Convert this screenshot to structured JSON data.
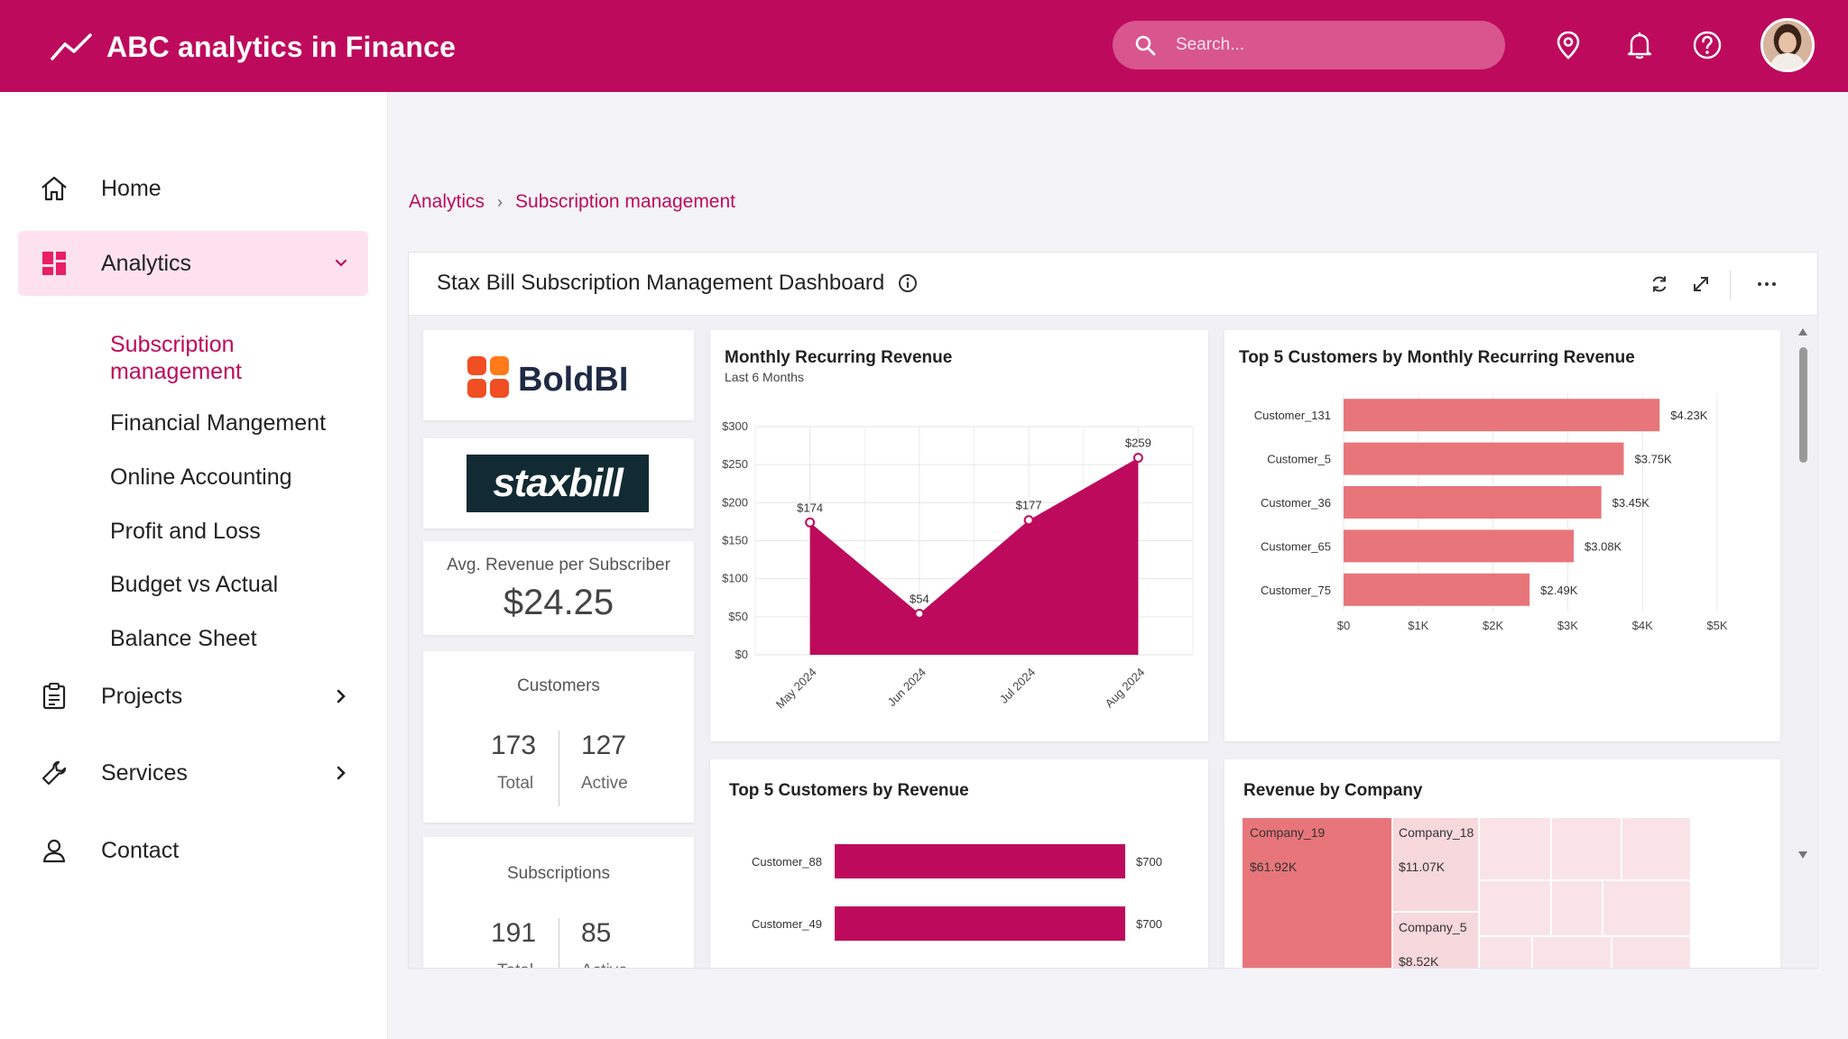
{
  "header": {
    "app_title": "ABC analytics in Finance",
    "search_placeholder": "Search...",
    "icons": [
      "trend-line-icon",
      "search-icon",
      "location-pin-icon",
      "bell-icon",
      "help-icon"
    ],
    "brand_color": "#be0a5c"
  },
  "sidebar": {
    "items": [
      {
        "label": "Home",
        "icon": "home-icon"
      },
      {
        "label": "Analytics",
        "icon": "dashboard-icon",
        "expanded": true
      },
      {
        "label": "Projects",
        "icon": "clipboard-icon"
      },
      {
        "label": "Services",
        "icon": "wrench-icon"
      },
      {
        "label": "Contact",
        "icon": "person-icon"
      }
    ],
    "analytics_children": [
      "Subscription management",
      "Financial Mangement",
      "Online Accounting",
      "Profit and Loss",
      "Budget vs Actual",
      "Balance Sheet"
    ]
  },
  "breadcrumb": {
    "root": "Analytics",
    "current": "Subscription management"
  },
  "dashboard": {
    "title": "Stax Bill Subscription Management Dashboard",
    "logos": {
      "boldbi": "BoldBI",
      "staxbill": "staxbill"
    },
    "avg_revenue": {
      "label": "Avg. Revenue per Subscriber",
      "value": "$24.25"
    },
    "customers": {
      "label": "Customers",
      "total": "173",
      "total_label": "Total",
      "active": "127",
      "active_label": "Active"
    },
    "subscriptions": {
      "label": "Subscriptions",
      "total": "191",
      "total_label": "Total",
      "active": "85",
      "active_label": "Active"
    },
    "mrr": {
      "title": "Monthly Recurring Revenue",
      "subtitle": "Last 6  Months"
    },
    "top5_mrr": {
      "title": "Top 5 Customers by Monthly Recurring Revenue"
    },
    "top5_rev": {
      "title": "Top 5 Customers by Revenue"
    },
    "rev_company": {
      "title": "Revenue by Company",
      "tiles": [
        {
          "name": "Company_19",
          "value": "$61.92K"
        },
        {
          "name": "Company_18",
          "value": "$11.07K"
        },
        {
          "name": "Company_5",
          "value": "$8.52K"
        }
      ]
    }
  },
  "chart_data": [
    {
      "type": "area",
      "title": "Monthly Recurring Revenue",
      "subtitle": "Last 6  Months",
      "categories": [
        "May 2024",
        "Jun 2024",
        "Jul 2024",
        "Aug 2024"
      ],
      "values": [
        174,
        54,
        177,
        259
      ],
      "data_labels": [
        "$174",
        "$54",
        "$177",
        "$259"
      ],
      "yticks": [
        "$0",
        "$50",
        "$100",
        "$150",
        "$200",
        "$250",
        "$300"
      ],
      "ylim": [
        0,
        300
      ],
      "grid": true,
      "color": "#be0a5c"
    },
    {
      "type": "bar",
      "orientation": "horizontal",
      "title": "Top 5 Customers by Monthly Recurring Revenue",
      "categories": [
        "Customer_131",
        "Customer_5",
        "Customer_36",
        "Customer_65",
        "Customer_75"
      ],
      "values": [
        4230,
        3750,
        3450,
        3080,
        2490
      ],
      "data_labels": [
        "$4.23K",
        "$3.75K",
        "$3.45K",
        "$3.08K",
        "$2.49K"
      ],
      "xticks": [
        "$0",
        "$1K",
        "$2K",
        "$3K",
        "$4K",
        "$5K"
      ],
      "xlim": [
        0,
        5000
      ],
      "grid": true,
      "color": "#e8757a"
    },
    {
      "type": "bar",
      "orientation": "horizontal",
      "title": "Top 5 Customers by Revenue",
      "categories": [
        "Customer_88",
        "Customer_49"
      ],
      "values": [
        700,
        700
      ],
      "data_labels": [
        "$700",
        "$700"
      ],
      "xlim": [
        0,
        900
      ],
      "color": "#be0a5c"
    }
  ]
}
